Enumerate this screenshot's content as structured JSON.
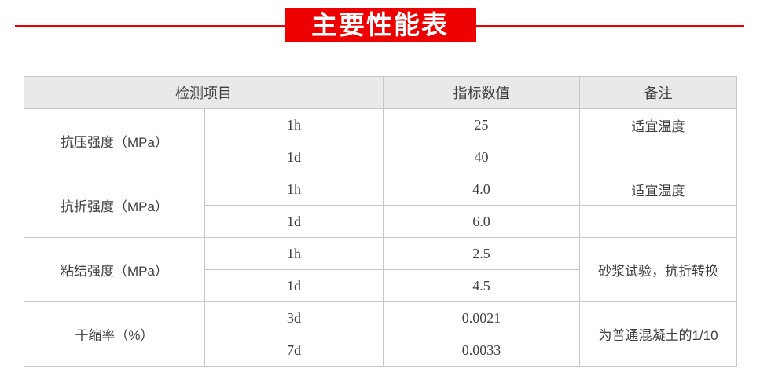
{
  "title": {
    "text": "主要性能表"
  },
  "colors": {
    "accent_red": "#ec0000",
    "header_bg": "#e9e9e9",
    "border": "#c7c7c7",
    "text": "#3f3f3f"
  },
  "table": {
    "headers": {
      "test_item": "检测项目",
      "index_value": "指标数值",
      "remark": "备注"
    },
    "groups": [
      {
        "item": "抗压强度（MPa）",
        "rows": [
          {
            "age": "1h",
            "value": "25",
            "note": "适宜温度"
          },
          {
            "age": "1d",
            "value": "40",
            "note": ""
          }
        ]
      },
      {
        "item": "抗折强度（MPa）",
        "rows": [
          {
            "age": "1h",
            "value": "4.0",
            "note": "适宜温度"
          },
          {
            "age": "1d",
            "value": "6.0",
            "note": ""
          }
        ]
      },
      {
        "item": "粘结强度（MPa）",
        "note": "砂浆试验，抗折转换",
        "rows": [
          {
            "age": "1h",
            "value": "2.5"
          },
          {
            "age": "1d",
            "value": "4.5"
          }
        ]
      },
      {
        "item": "干缩率（%）",
        "note": "为普通混凝土的1/10",
        "rows": [
          {
            "age": "3d",
            "value": "0.0021"
          },
          {
            "age": "7d",
            "value": "0.0033"
          }
        ]
      }
    ]
  }
}
